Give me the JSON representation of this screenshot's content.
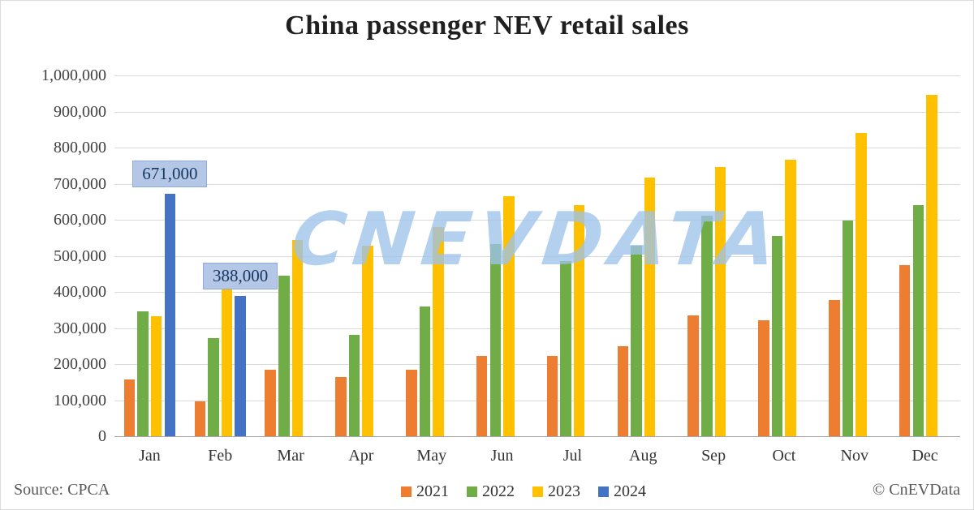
{
  "title": "China passenger NEV retail sales",
  "watermark": "CNEVDATA",
  "footer": {
    "source": "Source: CPCA",
    "copyright": "© CnEVData"
  },
  "colors": {
    "grid": "#d9d9d9",
    "axis": "#a6a6a6",
    "callout_fill": "#b4c7e7",
    "callout_border": "#8faadc",
    "callout_text": "#17375e",
    "watermark_blue": "#9dc3ea"
  },
  "chart_data": {
    "type": "bar",
    "title": "China passenger NEV retail sales",
    "categories": [
      "Jan",
      "Feb",
      "Mar",
      "Apr",
      "May",
      "Jun",
      "Jul",
      "Aug",
      "Sep",
      "Oct",
      "Nov",
      "Dec"
    ],
    "series": [
      {
        "name": "2021",
        "color": "#ED7D31",
        "values": [
          158000,
          97000,
          185000,
          163000,
          185000,
          223000,
          222000,
          249000,
          334000,
          321000,
          378000,
          475000
        ]
      },
      {
        "name": "2022",
        "color": "#70AD47",
        "values": [
          347000,
          272000,
          445000,
          282000,
          360000,
          532000,
          486000,
          529000,
          611000,
          556000,
          598000,
          640000
        ]
      },
      {
        "name": "2023",
        "color": "#FFC000",
        "values": [
          332000,
          439000,
          543000,
          527000,
          580000,
          665000,
          641000,
          716000,
          746000,
          767000,
          841000,
          945000
        ]
      },
      {
        "name": "2024",
        "color": "#4472C4",
        "values": [
          671000,
          388000,
          null,
          null,
          null,
          null,
          null,
          null,
          null,
          null,
          null,
          null
        ],
        "data_labels": [
          {
            "category": "Jan",
            "text": "671,000"
          },
          {
            "category": "Feb",
            "text": "388,000"
          }
        ]
      }
    ],
    "ylim": [
      0,
      1000000
    ],
    "ytick_values": [
      0,
      100000,
      200000,
      300000,
      400000,
      500000,
      600000,
      700000,
      800000,
      900000,
      1000000
    ],
    "ytick_labels": [
      "0",
      "100,000",
      "200,000",
      "300,000",
      "400,000",
      "500,000",
      "600,000",
      "700,000",
      "800,000",
      "900,000",
      "1,000,000"
    ],
    "grid": true,
    "legend_position": "bottom",
    "legend_entries": [
      "2021",
      "2022",
      "2023",
      "2024"
    ]
  }
}
